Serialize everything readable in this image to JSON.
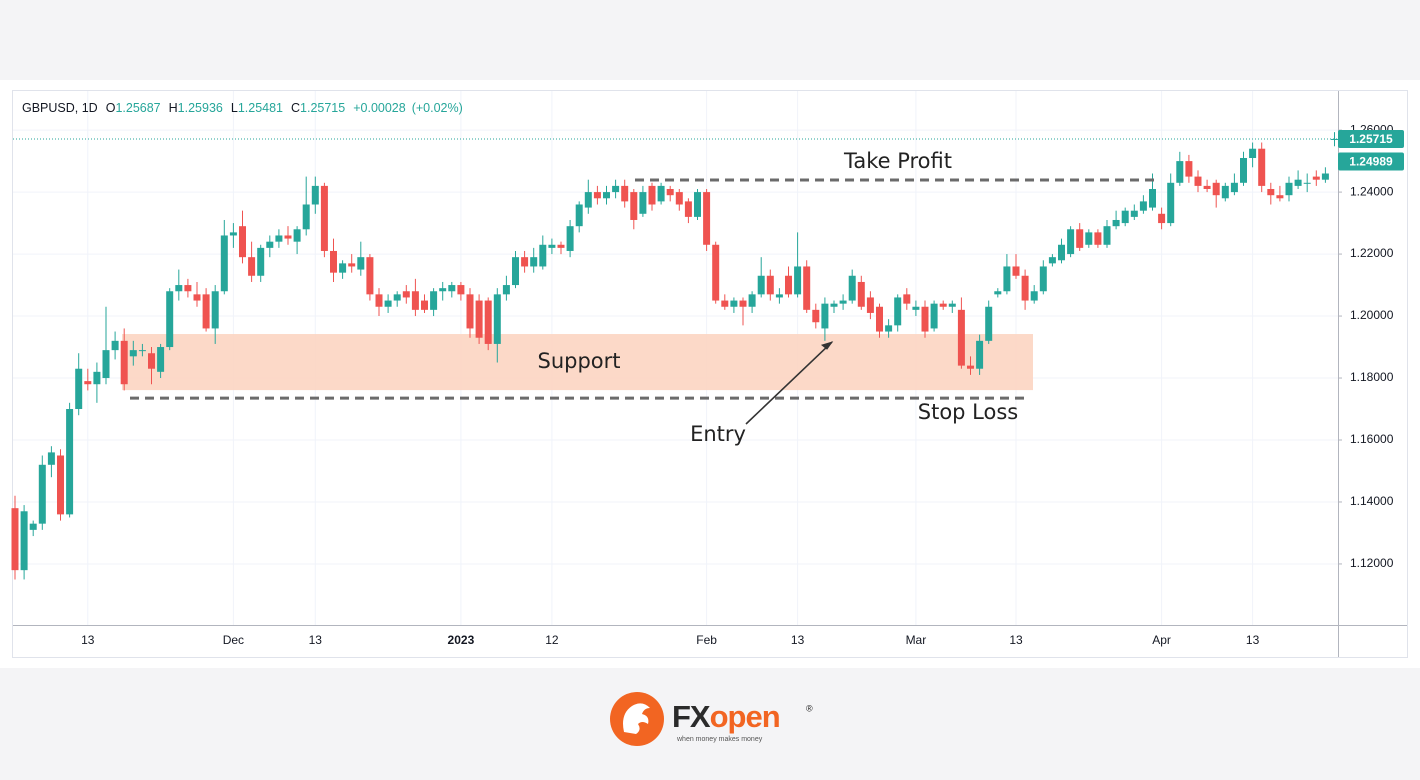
{
  "chart_data": {
    "type": "candlestick",
    "symbol": "GBPUSD, 1D",
    "legend_labels": [
      "O",
      "H",
      "L",
      "C"
    ],
    "change": "+0.00028",
    "change_pct": "(+0.02%)",
    "up_color": "#26a69a",
    "down_color": "#ef5350",
    "categories": [
      null,
      null,
      null,
      null,
      null,
      null,
      null,
      null,
      "13",
      null,
      null,
      null,
      null,
      null,
      null,
      null,
      null,
      null,
      null,
      null,
      null,
      null,
      null,
      null,
      "Dec",
      null,
      null,
      null,
      null,
      null,
      null,
      null,
      null,
      "13",
      null,
      null,
      null,
      null,
      null,
      null,
      null,
      null,
      null,
      null,
      null,
      null,
      null,
      null,
      null,
      "2023",
      null,
      null,
      null,
      null,
      null,
      null,
      null,
      null,
      null,
      "12",
      null,
      null,
      null,
      null,
      null,
      null,
      null,
      null,
      null,
      null,
      null,
      null,
      null,
      null,
      null,
      null,
      "Feb",
      null,
      null,
      null,
      null,
      null,
      null,
      null,
      null,
      null,
      "13",
      null,
      null,
      null,
      null,
      null,
      null,
      null,
      null,
      null,
      null,
      null,
      null,
      "Mar",
      null,
      null,
      null,
      null,
      null,
      null,
      null,
      null,
      null,
      null,
      "13",
      null,
      null,
      null,
      null,
      null,
      null,
      null,
      null,
      null,
      null,
      null,
      null,
      null,
      null,
      null,
      "Apr",
      null,
      null,
      null,
      null,
      null,
      null,
      null,
      null,
      null,
      "13",
      null,
      null,
      null,
      null,
      null,
      null,
      null,
      null,
      null
    ],
    "open": [
      1.138,
      1.118,
      1.131,
      1.133,
      1.152,
      1.155,
      1.136,
      1.17,
      1.179,
      1.178,
      1.18,
      1.189,
      1.192,
      1.187,
      1.189,
      1.188,
      1.182,
      1.19,
      1.208,
      1.21,
      1.207,
      1.207,
      1.196,
      1.208,
      1.226,
      1.229,
      1.219,
      1.213,
      1.222,
      1.224,
      1.226,
      1.224,
      1.228,
      1.236,
      1.242,
      1.221,
      1.214,
      1.217,
      1.215,
      1.219,
      1.207,
      1.203,
      1.205,
      1.208,
      1.208,
      1.205,
      1.202,
      1.208,
      1.208,
      1.21,
      1.207,
      1.205,
      1.205,
      1.191,
      1.207,
      1.21,
      1.219,
      1.216,
      1.216,
      1.222,
      1.223,
      1.221,
      1.229,
      1.235,
      1.24,
      1.238,
      1.24,
      1.242,
      1.24,
      1.233,
      1.242,
      1.237,
      1.241,
      1.24,
      1.237,
      1.232,
      1.24,
      1.223,
      1.205,
      1.203,
      1.205,
      1.203,
      1.207,
      1.213,
      1.206,
      1.213,
      1.207,
      1.216,
      1.202,
      1.196,
      1.203,
      1.204,
      1.205,
      1.211,
      1.206,
      1.203,
      1.195,
      1.197,
      1.207,
      1.202,
      1.203,
      1.196,
      1.204,
      1.203,
      1.202,
      1.184,
      1.183,
      1.192,
      1.207,
      1.208,
      1.216,
      1.213,
      1.205,
      1.208,
      1.217,
      1.218,
      1.22,
      1.228,
      1.223,
      1.227,
      1.223,
      1.229,
      1.23,
      1.232,
      1.234,
      1.235,
      1.233,
      1.23,
      1.243,
      1.25,
      1.245,
      1.242,
      1.243,
      1.238,
      1.24,
      1.243,
      1.251,
      1.254,
      1.241,
      1.239,
      1.239,
      1.242,
      1.243,
      1.245,
      1.244,
      1.25687
    ],
    "high": [
      1.142,
      1.139,
      1.134,
      1.155,
      1.158,
      1.157,
      1.172,
      1.188,
      1.183,
      1.185,
      1.203,
      1.195,
      1.196,
      1.192,
      1.191,
      1.19,
      1.191,
      1.209,
      1.215,
      1.212,
      1.211,
      1.209,
      1.21,
      1.231,
      1.23,
      1.234,
      1.224,
      1.223,
      1.226,
      1.228,
      1.229,
      1.229,
      1.245,
      1.245,
      1.243,
      1.225,
      1.218,
      1.22,
      1.224,
      1.22,
      1.209,
      1.207,
      1.208,
      1.21,
      1.212,
      1.207,
      1.209,
      1.211,
      1.211,
      1.211,
      1.209,
      1.207,
      1.206,
      1.209,
      1.213,
      1.221,
      1.221,
      1.222,
      1.226,
      1.225,
      1.224,
      1.231,
      1.237,
      1.244,
      1.242,
      1.242,
      1.244,
      1.244,
      1.241,
      1.242,
      1.243,
      1.243,
      1.242,
      1.241,
      1.238,
      1.241,
      1.241,
      1.224,
      1.207,
      1.206,
      1.206,
      1.208,
      1.219,
      1.215,
      1.209,
      1.216,
      1.227,
      1.218,
      1.204,
      1.206,
      1.205,
      1.207,
      1.215,
      1.213,
      1.208,
      1.204,
      1.199,
      1.207,
      1.209,
      1.205,
      1.205,
      1.205,
      1.205,
      1.205,
      1.206,
      1.187,
      1.194,
      1.205,
      1.209,
      1.22,
      1.22,
      1.215,
      1.21,
      1.218,
      1.22,
      1.225,
      1.229,
      1.23,
      1.228,
      1.228,
      1.231,
      1.234,
      1.235,
      1.236,
      1.239,
      1.246,
      1.235,
      1.246,
      1.253,
      1.252,
      1.247,
      1.244,
      1.244,
      1.243,
      1.246,
      1.253,
      1.256,
      1.256,
      1.243,
      1.242,
      1.245,
      1.247,
      1.246,
      1.247,
      1.248,
      1.25936
    ],
    "low": [
      1.115,
      1.115,
      1.129,
      1.131,
      1.148,
      1.134,
      1.135,
      1.168,
      1.176,
      1.172,
      1.178,
      1.186,
      1.176,
      1.184,
      1.187,
      1.178,
      1.18,
      1.189,
      1.205,
      1.206,
      1.203,
      1.195,
      1.191,
      1.207,
      1.222,
      1.217,
      1.211,
      1.211,
      1.219,
      1.222,
      1.223,
      1.22,
      1.226,
      1.233,
      1.219,
      1.211,
      1.212,
      1.214,
      1.213,
      1.205,
      1.2,
      1.201,
      1.203,
      1.204,
      1.2,
      1.201,
      1.2,
      1.205,
      1.206,
      1.205,
      1.193,
      1.191,
      1.189,
      1.185,
      1.205,
      1.209,
      1.214,
      1.214,
      1.215,
      1.22,
      1.22,
      1.219,
      1.227,
      1.233,
      1.236,
      1.236,
      1.238,
      1.235,
      1.228,
      1.232,
      1.234,
      1.236,
      1.237,
      1.234,
      1.23,
      1.231,
      1.221,
      1.204,
      1.202,
      1.201,
      1.197,
      1.201,
      1.206,
      1.205,
      1.204,
      1.206,
      1.206,
      1.201,
      1.196,
      1.192,
      1.201,
      1.202,
      1.204,
      1.202,
      1.199,
      1.193,
      1.193,
      1.195,
      1.202,
      1.2,
      1.193,
      1.195,
      1.202,
      1.201,
      1.183,
      1.181,
      1.181,
      1.191,
      1.206,
      1.207,
      1.212,
      1.202,
      1.204,
      1.207,
      1.216,
      1.217,
      1.219,
      1.221,
      1.222,
      1.222,
      1.222,
      1.228,
      1.229,
      1.231,
      1.233,
      1.234,
      1.228,
      1.229,
      1.242,
      1.243,
      1.24,
      1.24,
      1.235,
      1.237,
      1.239,
      1.242,
      1.248,
      1.24,
      1.236,
      1.237,
      1.237,
      1.241,
      1.24,
      1.242,
      1.243,
      1.25481
    ],
    "close": [
      1.118,
      1.137,
      1.133,
      1.152,
      1.156,
      1.136,
      1.17,
      1.183,
      1.178,
      1.182,
      1.189,
      1.192,
      1.178,
      1.189,
      1.189,
      1.183,
      1.19,
      1.208,
      1.21,
      1.208,
      1.205,
      1.196,
      1.208,
      1.226,
      1.227,
      1.219,
      1.213,
      1.222,
      1.224,
      1.226,
      1.225,
      1.228,
      1.236,
      1.242,
      1.221,
      1.214,
      1.217,
      1.216,
      1.219,
      1.207,
      1.203,
      1.205,
      1.207,
      1.206,
      1.202,
      1.202,
      1.208,
      1.209,
      1.21,
      1.207,
      1.196,
      1.193,
      1.191,
      1.207,
      1.21,
      1.219,
      1.216,
      1.219,
      1.223,
      1.223,
      1.222,
      1.229,
      1.236,
      1.24,
      1.238,
      1.24,
      1.242,
      1.237,
      1.231,
      1.24,
      1.236,
      1.242,
      1.239,
      1.236,
      1.232,
      1.24,
      1.223,
      1.205,
      1.203,
      1.205,
      1.203,
      1.207,
      1.213,
      1.207,
      1.207,
      1.207,
      1.216,
      1.202,
      1.198,
      1.204,
      1.204,
      1.205,
      1.213,
      1.203,
      1.201,
      1.195,
      1.197,
      1.206,
      1.204,
      1.203,
      1.195,
      1.204,
      1.203,
      1.204,
      1.184,
      1.183,
      1.192,
      1.203,
      1.208,
      1.216,
      1.213,
      1.205,
      1.208,
      1.216,
      1.219,
      1.223,
      1.228,
      1.222,
      1.227,
      1.223,
      1.229,
      1.231,
      1.234,
      1.234,
      1.237,
      1.241,
      1.23,
      1.243,
      1.25,
      1.245,
      1.242,
      1.241,
      1.239,
      1.242,
      1.243,
      1.251,
      1.254,
      1.242,
      1.239,
      1.238,
      1.243,
      1.244,
      1.243,
      1.244,
      1.246,
      1.25715
    ],
    "ylim": [
      1.1003,
      1.2723
    ],
    "yticks": [
      {
        "value": 1.12,
        "label": "1.12000"
      },
      {
        "value": 1.14,
        "label": "1.14000"
      },
      {
        "value": 1.16,
        "label": "1.16000"
      },
      {
        "value": 1.18,
        "label": "1.18000"
      },
      {
        "value": 1.2,
        "label": "1.20000"
      },
      {
        "value": 1.22,
        "label": "1.22000"
      },
      {
        "value": 1.24,
        "label": "1.24000"
      },
      {
        "value": 1.26,
        "label": "1.26000"
      }
    ],
    "grid": true,
    "price_tags": [
      1.25715,
      1.24989
    ],
    "annotations": {
      "take_profit": {
        "text": "Take Profit",
        "level": 1.2439
      },
      "support": {
        "text": "Support",
        "range": [
          1.1761,
          1.1942
        ]
      },
      "stop_loss": {
        "text": "Stop Loss",
        "level": 1.1735
      },
      "entry": {
        "text": "Entry",
        "price": 1.1916
      }
    }
  },
  "logo": {
    "brand_first": "FX",
    "brand_second": "open",
    "registered": "®",
    "tagline": "when money makes money"
  }
}
